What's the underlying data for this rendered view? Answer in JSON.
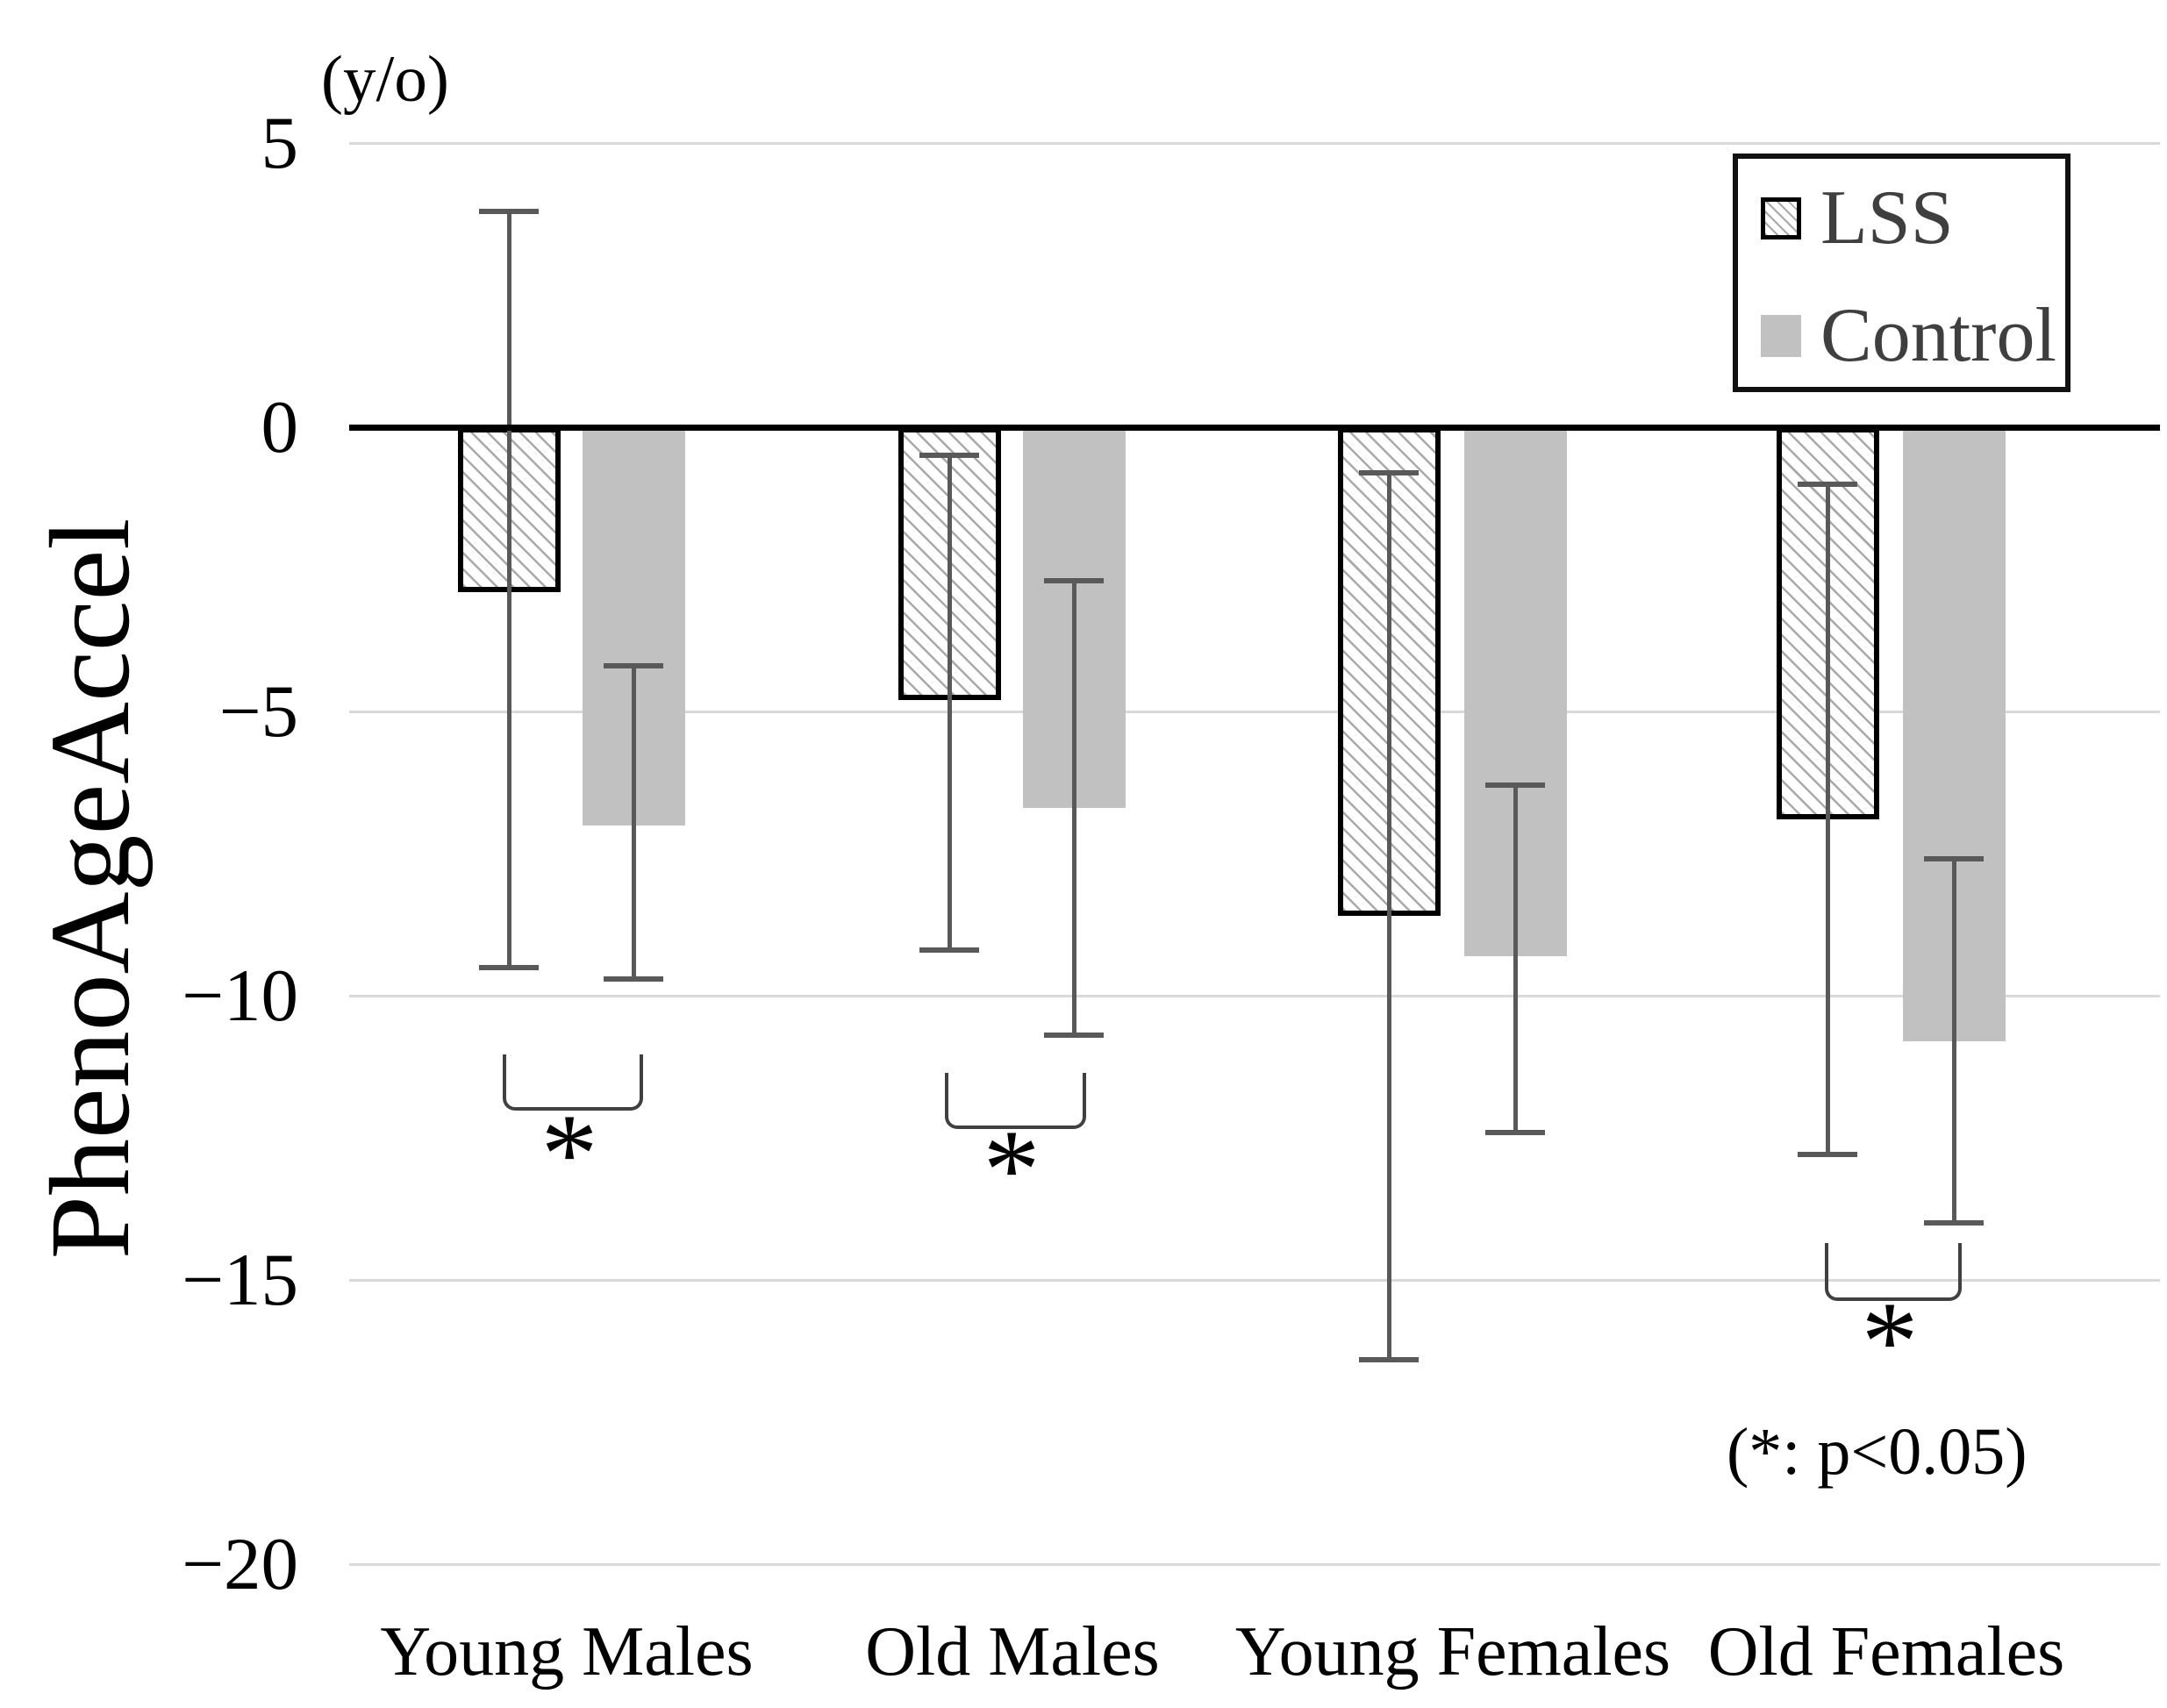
{
  "chart_data": {
    "type": "bar",
    "title": "",
    "ylabel": "PhenoAgeAccel",
    "y_unit_label": "(y/o)",
    "xlabel": "",
    "categories": [
      "Young Males",
      "Old Males",
      "Young Females",
      "Old Females"
    ],
    "series": [
      {
        "name": "LSS",
        "style": "white-with-diagonal-hatch-black-border",
        "values": [
          -2.9,
          -4.8,
          -8.6,
          -6.9
        ],
        "error_upper": [
          3.8,
          -0.5,
          -0.8,
          -1.0
        ],
        "error_lower": [
          -9.5,
          -9.2,
          -16.4,
          -12.8
        ]
      },
      {
        "name": "Control",
        "style": "solid-gray",
        "values": [
          -7.0,
          -6.7,
          -9.3,
          -10.8
        ],
        "error_upper": [
          -4.2,
          -2.7,
          -6.3,
          -7.6
        ],
        "error_lower": [
          -9.7,
          -10.7,
          -12.4,
          -14.0
        ]
      }
    ],
    "ylim": [
      -20,
      5
    ],
    "yticks": [
      5,
      0,
      -5,
      -10,
      -15,
      -20
    ],
    "ytick_labels": [
      "5",
      "0",
      "−5",
      "−10",
      "−15",
      "−20"
    ],
    "grid": true,
    "legend_position": "top-right",
    "error_bars": true,
    "significance": {
      "marker": "*",
      "note": "(*: p<0.05)",
      "pairs": [
        "Young Males",
        "Old Males",
        "Old Females"
      ]
    }
  },
  "colors": {
    "control_fill": "#c1c1c1",
    "lss_fill": "#ffffff",
    "hatch_line": "#a9a9a9",
    "bar_border": "#000000",
    "error_bar": "#595959",
    "gridline": "#d9d9d9",
    "axis_line": "#000000",
    "text": "#000000",
    "legend_text": "#3f3f3f",
    "bracket": "#404040"
  }
}
